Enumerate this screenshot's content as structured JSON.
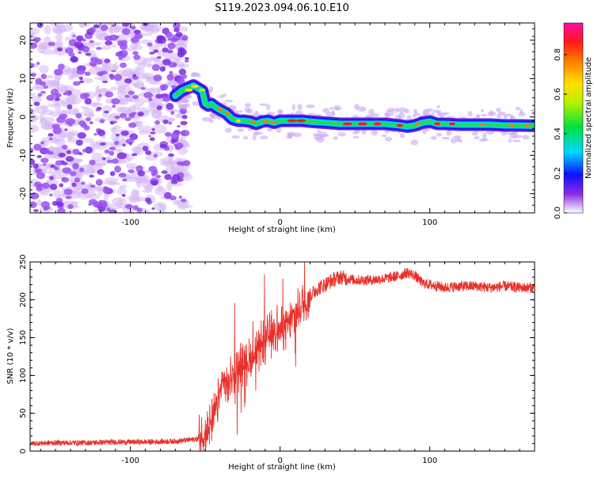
{
  "title": "S119.2023.094.06.10.E10",
  "chart_data": [
    {
      "type": "heatmap",
      "xlabel": "Height of straight line (km)",
      "ylabel": "Frequency (Hz)",
      "xlim": [
        -167,
        170
      ],
      "ylim": [
        -25,
        24.5
      ],
      "xticks": [
        -100,
        0,
        100
      ],
      "xtick_labels": [
        "-100",
        "0",
        "100"
      ],
      "yticks": [
        -20,
        -10,
        0,
        10,
        20
      ],
      "ytick_labels": [
        "-20",
        "-10",
        "0",
        "10",
        "20"
      ],
      "colorbar": {
        "label": "Normalized spectral amplitude",
        "range": [
          0,
          0.96
        ],
        "ticks": [
          0.0,
          0.2,
          0.4,
          0.6,
          0.8
        ],
        "tick_labels": [
          "0.0",
          "0.2",
          "0.4",
          "0.6",
          "0.8"
        ]
      },
      "noise_region": {
        "x": [
          -167,
          -62
        ],
        "y": [
          -25,
          24.5
        ]
      },
      "ridge": {
        "x": [
          -70,
          -66,
          -62,
          -58,
          -55,
          -52,
          -50,
          -48,
          -46,
          -43,
          -40,
          -36,
          -32,
          -28,
          -24,
          -20,
          -16,
          -12,
          -8,
          -4,
          0,
          5,
          10,
          15,
          20,
          30,
          40,
          50,
          60,
          70,
          80,
          85,
          90,
          95,
          100,
          105,
          110,
          120,
          130,
          140,
          150,
          160,
          170
        ],
        "y": [
          5.5,
          6.8,
          7.5,
          8.2,
          7.5,
          6.8,
          3.5,
          3,
          3.4,
          2.5,
          1.8,
          1,
          -0.5,
          -1,
          -1,
          -1.2,
          -1.8,
          -1.2,
          -1,
          -1.5,
          -1,
          -1,
          -1,
          -1,
          -1.2,
          -1.5,
          -1.8,
          -1.8,
          -1.8,
          -1.8,
          -2.2,
          -2.5,
          -2.2,
          -1.5,
          -1.2,
          -1.8,
          -1.8,
          -2,
          -2,
          -2,
          -2.2,
          -2.2,
          -2.3
        ]
      }
    },
    {
      "type": "line",
      "xlabel": "Height of straight line (km)",
      "ylabel": "SNR (10 * v/v)",
      "xlim": [
        -167,
        170
      ],
      "ylim": [
        0,
        250
      ],
      "xticks": [
        -100,
        0,
        100
      ],
      "xtick_labels": [
        "-100",
        "0",
        "100"
      ],
      "yticks": [
        0,
        50,
        100,
        150,
        200,
        250
      ],
      "ytick_labels": [
        "0",
        "50",
        "100",
        "150",
        "200",
        "250"
      ],
      "series": [
        {
          "color": "#e8302a",
          "x": [
            -167,
            -150,
            -130,
            -110,
            -90,
            -70,
            -55,
            -50,
            -46,
            -43,
            -40,
            -38,
            -35,
            -32,
            -28,
            -24,
            -20,
            -16,
            -12,
            -8,
            -4,
            0,
            4,
            8,
            12,
            16,
            20,
            25,
            30,
            35,
            40,
            45,
            50,
            60,
            70,
            80,
            85,
            90,
            95,
            100,
            110,
            120,
            130,
            140,
            150,
            160,
            170
          ],
          "y": [
            10,
            11,
            11,
            12,
            12,
            13,
            16,
            22,
            35,
            55,
            75,
            95,
            85,
            100,
            110,
            115,
            122,
            130,
            140,
            150,
            160,
            160,
            165,
            175,
            185,
            195,
            205,
            215,
            220,
            226,
            230,
            228,
            226,
            226,
            228,
            232,
            236,
            232,
            222,
            220,
            216,
            218,
            218,
            216,
            218,
            216,
            216
          ]
        }
      ]
    }
  ]
}
